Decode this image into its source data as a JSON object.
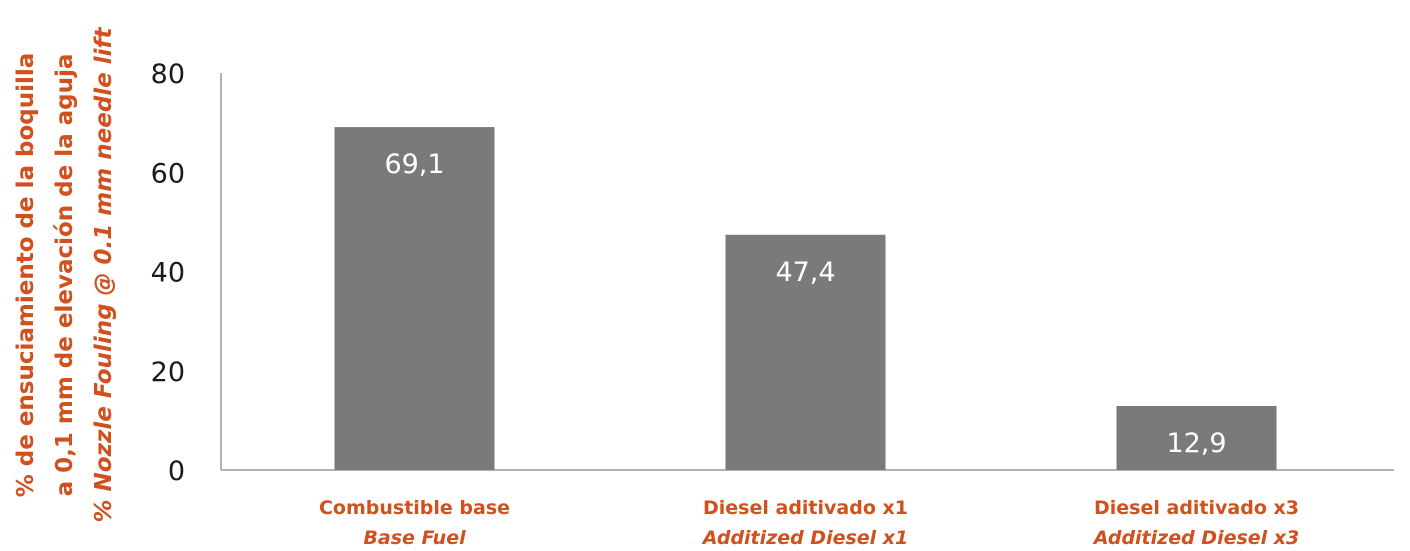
{
  "chart_data": {
    "type": "bar",
    "title": "",
    "ylabel": [
      "% de ensuciamiento de la boquilla",
      "a 0,1 mm de elevación de la aguja",
      "% Nozzle Fouling @ 0.1 mm needle lift"
    ],
    "xlabel": "",
    "categories": [
      {
        "es": "Combustible base",
        "en": "Base Fuel"
      },
      {
        "es": "Diesel aditivado x1",
        "en": "Additized Diesel x1"
      },
      {
        "es": "Diesel aditivado x3",
        "en": "Additized Diesel x3"
      }
    ],
    "values": [
      69.1,
      47.4,
      12.9
    ],
    "value_labels": [
      "69,1",
      "47,4",
      "12,9"
    ],
    "ylim": [
      0,
      80
    ],
    "yticks": [
      0,
      20,
      40,
      60,
      80
    ],
    "ytick_labels": [
      "0",
      "20",
      "40",
      "60",
      "80"
    ],
    "grid": false,
    "legend": "none",
    "colors": {
      "bar": "#7a7a7a",
      "bar_label": "#ffffff",
      "axis_text": "#1a1a1a",
      "accent_text": "#d0501e",
      "axis_line": "#9a9a9a"
    }
  }
}
